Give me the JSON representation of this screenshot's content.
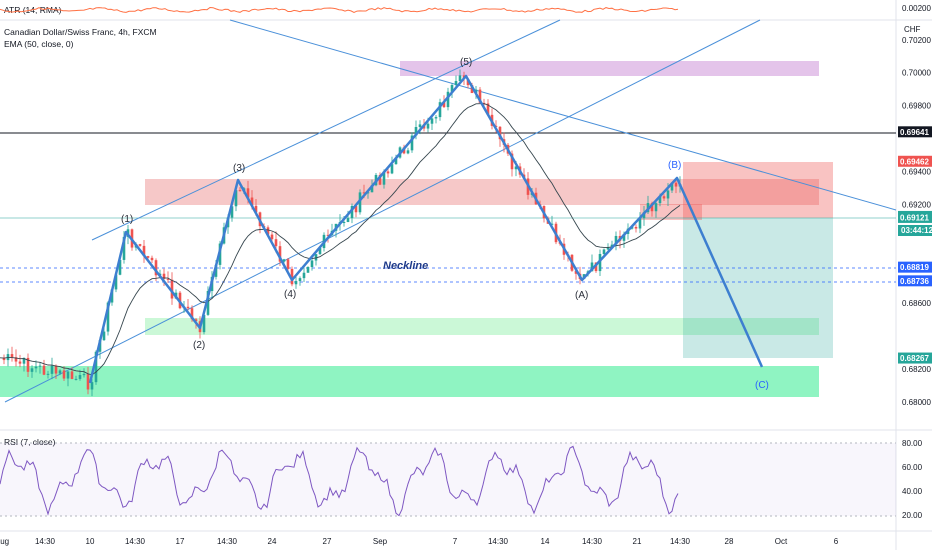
{
  "header": {
    "atr_label": "ATR (14, RMA)",
    "symbol_label": "Canadian Dollar/Swiss Franc, 4h, FXCM",
    "ema_label": "EMA (50, close, 0)",
    "rsi_label": "RSI (7, close)",
    "currency": "CHF",
    "countdown": "03:44:12"
  },
  "chart_data": {
    "type": "line",
    "price_ylim": [
      0.6783,
      0.7032
    ],
    "price_ticks": [
      "0.70200",
      "0.70000",
      "0.69800",
      "0.69400",
      "0.69200",
      "0.68600",
      "0.68200",
      "0.68000"
    ],
    "price_tick_values": [
      0.702,
      0.7,
      0.698,
      0.694,
      0.692,
      0.686,
      0.682,
      0.68
    ],
    "atr_ticks": [
      "0.00200"
    ],
    "rsi_ticks": [
      "80.00",
      "60.00",
      "40.00",
      "20.00"
    ],
    "rsi_tick_values": [
      80,
      60,
      40,
      20
    ],
    "x_ticks": [
      "Aug",
      "14:30",
      "10",
      "14:30",
      "17",
      "14:30",
      "24",
      "27",
      "Sep",
      "7",
      "14:30",
      "14",
      "14:30",
      "21",
      "14:30",
      "28",
      "Oct",
      "6"
    ],
    "price_tags": [
      {
        "value": 0.69641,
        "label": "0.69641",
        "color": "#131722"
      },
      {
        "value": 0.69462,
        "label": "0.69462",
        "color": "#ef5350"
      },
      {
        "value": 0.69127,
        "label": "0.69127",
        "color": "#26a69a"
      },
      {
        "value": 0.69121,
        "label": "0.69121",
        "color": "#26a69a"
      },
      {
        "value": 0.68819,
        "label": "0.68819",
        "color": "#2962ff"
      },
      {
        "value": 0.68736,
        "label": "0.68736",
        "color": "#2962ff"
      },
      {
        "value": 0.68267,
        "label": "0.68267",
        "color": "#26a69a"
      }
    ],
    "wave_points": [
      {
        "label": "(1)",
        "x": 7,
        "price": 0.69
      },
      {
        "label": "(2)",
        "x": 8,
        "price": 0.6844
      },
      {
        "label": "(3)",
        "x": 9,
        "price": 0.6935
      },
      {
        "label": "(4)",
        "x": 12,
        "price": 0.6873
      },
      {
        "label": "(5)",
        "x": 16,
        "price": 0.7
      },
      {
        "label": "(A)",
        "x": 30,
        "price": 0.6873
      },
      {
        "label": "(B)",
        "x": 36,
        "price": 0.6935
      },
      {
        "label": "(C)",
        "x": 48,
        "price": 0.682
      }
    ],
    "annotation": "Neckline"
  }
}
